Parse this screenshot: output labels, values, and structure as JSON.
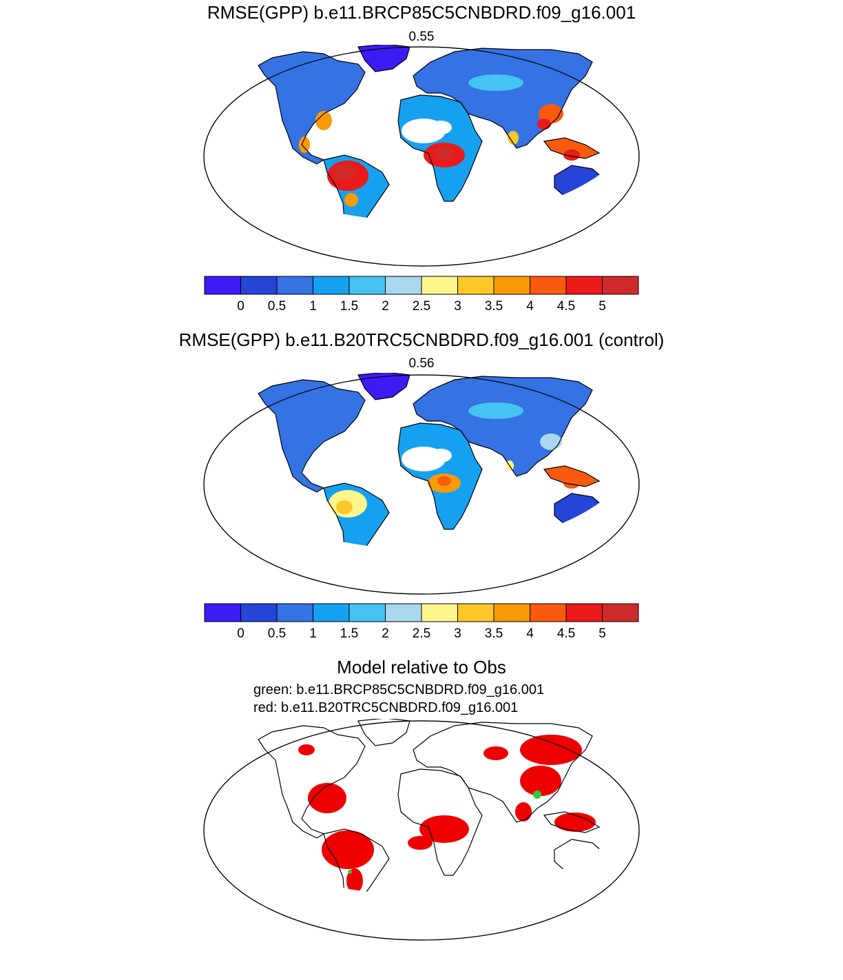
{
  "panel1": {
    "title": "RMSE(GPP) b.e11.BRCP85C5CNBDRD.f09_g16.001",
    "score": "0.55"
  },
  "panel2": {
    "title": "RMSE(GPP) b.e11.B20TRC5CNBDRD.f09_g16.001 (control)",
    "score": "0.56"
  },
  "panel3": {
    "title": "Model relative to Obs",
    "legend_green": "green: b.e11.BRCP85C5CNBDRD.f09_g16.001",
    "legend_red": "red: b.e11.B20TRC5CNBDRD.f09_g16.001"
  },
  "colorbar": {
    "labels": [
      "0",
      "0.5",
      "1",
      "1.5",
      "2",
      "2.5",
      "3",
      "3.5",
      "4",
      "4.5",
      "5"
    ],
    "colors": [
      "#3b1cf5",
      "#2544d8",
      "#3572e3",
      "#16a0f0",
      "#45c3f2",
      "#a9d8ee",
      "#fef58c",
      "#fcc728",
      "#fb9a08",
      "#f95a0e",
      "#eb1a1a",
      "#cf2a2a"
    ]
  },
  "colors": {
    "red_better": "#ee0000",
    "green_better": "#33cc33",
    "ocean": "#ffffff",
    "coast": "#000000"
  },
  "chart_data": {
    "type": "heatmap",
    "projection": "Robinson",
    "variable": "GPP RMSE",
    "colorbar_levels": [
      0,
      0.5,
      1,
      1.5,
      2,
      2.5,
      3,
      3.5,
      4,
      4.5,
      5
    ],
    "maps": [
      {
        "name": "b.e11.BRCP85C5CNBDRD.f09_g16.001",
        "global_score": 0.55
      },
      {
        "name": "b.e11.B20TRC5CNBDRD.f09_g16.001 (control)",
        "global_score": 0.56
      },
      {
        "name": "Model relative to Obs",
        "categories": [
          "green",
          "red"
        ]
      }
    ]
  }
}
